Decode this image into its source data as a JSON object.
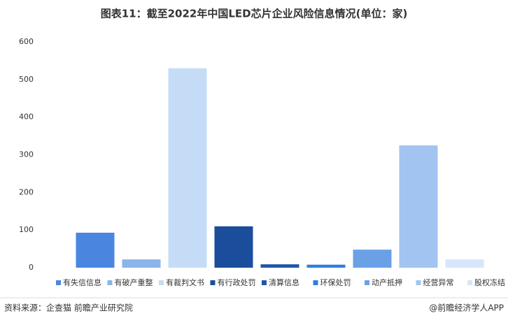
{
  "chart_data": {
    "type": "bar",
    "title": "图表11：截至2022年中国LED芯片企业风险信息情况(单位：家)",
    "categories": [
      "有失信信息",
      "有破产重整",
      "有裁判文书",
      "有行政处罚",
      "清算信息",
      "环保处罚",
      "动产抵押",
      "经营异常",
      "股权冻结"
    ],
    "values": [
      93,
      22,
      530,
      110,
      9,
      8,
      48,
      325,
      22
    ],
    "colors": [
      "#4a86e0",
      "#8ab4ea",
      "#c5dcf7",
      "#1a4e9c",
      "#1f56a8",
      "#2f7de0",
      "#6aa0e6",
      "#a1c4f0",
      "#d7e7fa"
    ],
    "ylim": [
      0,
      600
    ],
    "yticks": [
      0,
      100,
      200,
      300,
      400,
      500,
      600
    ],
    "grid": false,
    "source": "资料来源：企查猫 前瞻产业研究院",
    "credit": "@前瞻经济学人APP"
  }
}
